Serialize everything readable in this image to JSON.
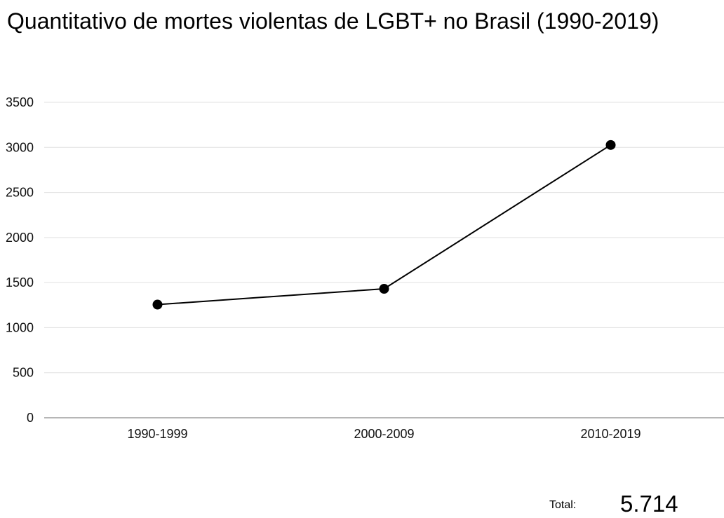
{
  "chart_data": {
    "type": "line",
    "title": "Quantitativo de mortes violentas de LGBT+ no Brasil (1990-2019)",
    "categories": [
      "1990-1999",
      "2000-2009",
      "2010-2019"
    ],
    "series": [
      {
        "values": [
          1256,
          1431,
          3027
        ]
      }
    ],
    "xlabel": "",
    "ylabel": "",
    "ylim": [
      0,
      3500
    ],
    "yticks": [
      "0",
      "500",
      "1000",
      "1500",
      "2000",
      "2500",
      "3000",
      "3500"
    ],
    "grid": true,
    "legend": "none",
    "line_color": "#000000",
    "gridline_color": "#e0e0e0"
  },
  "summary": {
    "total_label": "Total:",
    "total_value": "5.714"
  }
}
